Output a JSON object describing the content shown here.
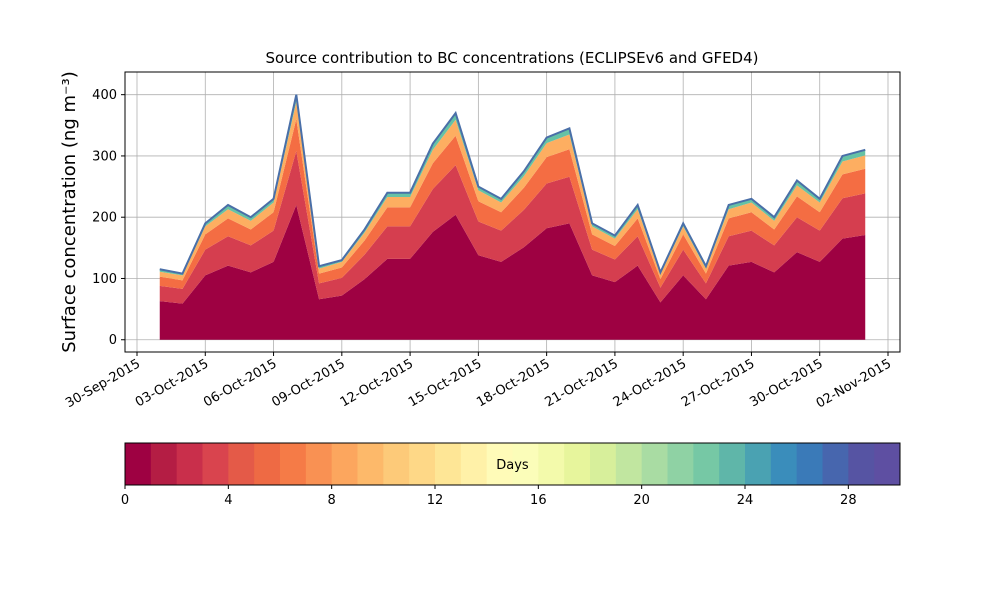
{
  "chart_data": {
    "type": "stacked_area",
    "title": "Source contribution to BC concentrations (ECLIPSEv6 and GFED4)",
    "ylabel": "Surface concentration (ng m⁻³)",
    "x": [
      "2015-10-01",
      "2015-10-02",
      "2015-10-03",
      "2015-10-04",
      "2015-10-05",
      "2015-10-06",
      "2015-10-07",
      "2015-10-08",
      "2015-10-09",
      "2015-10-10",
      "2015-10-11",
      "2015-10-12",
      "2015-10-13",
      "2015-10-14",
      "2015-10-15",
      "2015-10-16",
      "2015-10-17",
      "2015-10-18",
      "2015-10-19",
      "2015-10-20",
      "2015-10-21",
      "2015-10-22",
      "2015-10-23",
      "2015-10-24",
      "2015-10-25",
      "2015-10-26",
      "2015-10-27",
      "2015-10-28",
      "2015-10-29",
      "2015-10-30",
      "2015-10-31",
      "2015-11-01"
    ],
    "series": [
      {
        "color": "#9e0142",
        "values": [
          63,
          59,
          105,
          121,
          110,
          127,
          220,
          66,
          72,
          99,
          132,
          132,
          176,
          204,
          138,
          127,
          151,
          182,
          190,
          105,
          94,
          121,
          61,
          105,
          66,
          121,
          127,
          110,
          143,
          127,
          165,
          171
        ]
      },
      {
        "color": "#d53e4f",
        "values": [
          25,
          24,
          42,
          48,
          44,
          51,
          88,
          26,
          29,
          40,
          53,
          53,
          70,
          81,
          55,
          51,
          61,
          73,
          76,
          42,
          37,
          48,
          24,
          42,
          26,
          48,
          51,
          44,
          57,
          51,
          66,
          68
        ]
      },
      {
        "color": "#f46d43",
        "values": [
          15,
          14,
          25,
          29,
          26,
          30,
          52,
          16,
          17,
          23,
          31,
          31,
          42,
          48,
          33,
          30,
          36,
          43,
          45,
          25,
          22,
          29,
          14,
          25,
          16,
          29,
          30,
          26,
          34,
          30,
          39,
          40
        ]
      },
      {
        "color": "#fdae61",
        "values": [
          8,
          8,
          13,
          15,
          14,
          16,
          28,
          8,
          9,
          13,
          17,
          17,
          22,
          26,
          18,
          16,
          19,
          23,
          24,
          13,
          12,
          15,
          8,
          13,
          8,
          15,
          16,
          14,
          18,
          16,
          21,
          22
        ]
      },
      {
        "color": "#66c2a5",
        "values": [
          4,
          3,
          5,
          7,
          6,
          6,
          12,
          4,
          3,
          5,
          7,
          7,
          10,
          11,
          6,
          6,
          8,
          9,
          10,
          5,
          5,
          7,
          3,
          5,
          4,
          7,
          6,
          6,
          8,
          6,
          9,
          9
        ]
      }
    ],
    "line_color": "#4a6fa8",
    "ylim": [
      -20,
      437
    ],
    "yticks": [
      0,
      100,
      200,
      300,
      400
    ],
    "xlim": [
      "2015-09-30",
      "2015-11-02"
    ],
    "xticks": [
      {
        "value": "2015-09-30",
        "label": "30-Sep-2015"
      },
      {
        "value": "2015-10-03",
        "label": "03-Oct-2015"
      },
      {
        "value": "2015-10-06",
        "label": "06-Oct-2015"
      },
      {
        "value": "2015-10-09",
        "label": "09-Oct-2015"
      },
      {
        "value": "2015-10-12",
        "label": "12-Oct-2015"
      },
      {
        "value": "2015-10-15",
        "label": "15-Oct-2015"
      },
      {
        "value": "2015-10-18",
        "label": "18-Oct-2015"
      },
      {
        "value": "2015-10-21",
        "label": "21-Oct-2015"
      },
      {
        "value": "2015-10-24",
        "label": "24-Oct-2015"
      },
      {
        "value": "2015-10-27",
        "label": "27-Oct-2015"
      },
      {
        "value": "2015-10-30",
        "label": "30-Oct-2015"
      },
      {
        "value": "2015-11-02",
        "label": "02-Nov-2015"
      }
    ],
    "grid": true,
    "colorbar": {
      "label": "Days",
      "lim": [
        0,
        30
      ],
      "ticks": [
        0,
        4,
        8,
        12,
        16,
        20,
        24,
        28
      ],
      "colors": [
        "#9e0142",
        "#b41d44",
        "#c92f4b",
        "#d9444e",
        "#e45a48",
        "#ee6a44",
        "#f57b47",
        "#f99153",
        "#fca65e",
        "#fdb96a",
        "#fdca79",
        "#fed887",
        "#fee696",
        "#fff1a8",
        "#fffbb8",
        "#fbfdb9",
        "#f3faab",
        "#e7f59c",
        "#d7ef9b",
        "#c1e6a0",
        "#a9dca3",
        "#8fd2a4",
        "#76c8a5",
        "#5fb6a9",
        "#4aa2b2",
        "#3a8dbb",
        "#3a7ab8",
        "#4766ae",
        "#5654a3",
        "#5e4fa2"
      ]
    }
  }
}
